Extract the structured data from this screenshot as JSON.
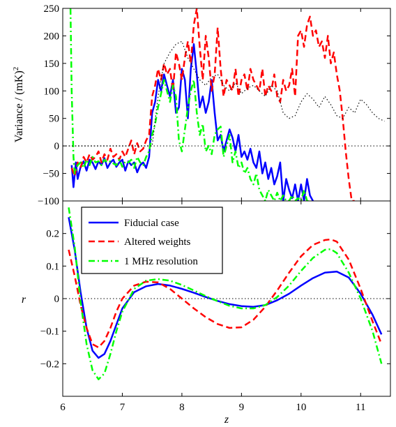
{
  "chart_data": [
    {
      "type": "line",
      "panel": "top",
      "ylabel_main": "Variance / (mK)",
      "ylabel_sup": "2",
      "xlim": [
        6,
        11.5
      ],
      "ylim": [
        -100,
        250
      ],
      "yticks": [
        -100,
        -50,
        0,
        50,
        100,
        150,
        200,
        250
      ],
      "ytick_labels": [
        "−100",
        "−50",
        "0",
        "50",
        "100",
        "150",
        "200",
        "250"
      ],
      "grid": false,
      "series": [
        {
          "color": "#0000ff",
          "style": "solid",
          "x": [
            6.15,
            6.18,
            6.22,
            6.25,
            6.3,
            6.35,
            6.4,
            6.45,
            6.5,
            6.55,
            6.6,
            6.65,
            6.7,
            6.75,
            6.8,
            6.85,
            6.9,
            6.95,
            7.0,
            7.05,
            7.1,
            7.15,
            7.2,
            7.25,
            7.3,
            7.35,
            7.4,
            7.45,
            7.5,
            7.55,
            7.6,
            7.65,
            7.7,
            7.75,
            7.8,
            7.85,
            7.9,
            7.95,
            8.0,
            8.05,
            8.1,
            8.15,
            8.2,
            8.25,
            8.3,
            8.35,
            8.4,
            8.45,
            8.5,
            8.55,
            8.6,
            8.65,
            8.7,
            8.75,
            8.8,
            8.85,
            8.9,
            8.95,
            9.0,
            9.05,
            9.1,
            9.15,
            9.2,
            9.25,
            9.3,
            9.35,
            9.4,
            9.45,
            9.5,
            9.55,
            9.6,
            9.65,
            9.7,
            9.75,
            9.8,
            9.85,
            9.9,
            9.95,
            10.0,
            10.05,
            10.1,
            10.15,
            10.2
          ],
          "y": [
            -35,
            -75,
            -30,
            -60,
            -38,
            -28,
            -45,
            -25,
            -30,
            -42,
            -28,
            -35,
            -22,
            -40,
            -30,
            -25,
            -38,
            -30,
            -25,
            -45,
            -28,
            -35,
            -30,
            -48,
            -35,
            -30,
            -40,
            -20,
            60,
            80,
            120,
            100,
            130,
            110,
            90,
            120,
            60,
            70,
            140,
            120,
            50,
            140,
            185,
            130,
            70,
            90,
            60,
            80,
            120,
            60,
            10,
            20,
            -10,
            10,
            30,
            15,
            -10,
            20,
            -20,
            -10,
            -25,
            -5,
            -30,
            -40,
            -10,
            -50,
            -30,
            -60,
            -40,
            -70,
            -55,
            -30,
            -100,
            -60,
            -80,
            -95,
            -70,
            -100,
            -70,
            -100,
            -60,
            -90,
            -100
          ]
        },
        {
          "color": "#ff0000",
          "style": "dashed",
          "x": [
            6.15,
            6.2,
            6.25,
            6.3,
            6.35,
            6.4,
            6.45,
            6.5,
            6.55,
            6.6,
            6.65,
            6.7,
            6.75,
            6.8,
            6.85,
            6.9,
            6.95,
            7.0,
            7.05,
            7.1,
            7.15,
            7.2,
            7.25,
            7.3,
            7.35,
            7.4,
            7.45,
            7.5,
            7.55,
            7.6,
            7.65,
            7.7,
            7.75,
            7.8,
            7.85,
            7.9,
            7.95,
            8.0,
            8.05,
            8.1,
            8.15,
            8.2,
            8.25,
            8.3,
            8.35,
            8.4,
            8.45,
            8.5,
            8.55,
            8.6,
            8.65,
            8.7,
            8.75,
            8.8,
            8.85,
            8.9,
            8.95,
            9.0,
            9.05,
            9.1,
            9.15,
            9.2,
            9.25,
            9.3,
            9.35,
            9.4,
            9.45,
            9.5,
            9.55,
            9.6,
            9.65,
            9.7,
            9.75,
            9.8,
            9.85,
            9.9,
            9.95,
            10.0,
            10.05,
            10.1,
            10.15,
            10.2,
            10.25,
            10.3,
            10.35,
            10.4,
            10.45,
            10.5,
            10.55,
            10.6,
            10.65,
            10.7,
            10.75,
            10.8,
            10.85,
            10.9
          ],
          "y": [
            -40,
            -55,
            -30,
            -40,
            -20,
            -30,
            -15,
            -25,
            -20,
            -10,
            -30,
            -15,
            -25,
            -5,
            -20,
            -15,
            -25,
            -10,
            -20,
            -5,
            10,
            -15,
            5,
            -10,
            -5,
            10,
            20,
            90,
            110,
            140,
            120,
            150,
            130,
            140,
            100,
            170,
            150,
            120,
            160,
            190,
            150,
            220,
            250,
            180,
            120,
            200,
            160,
            100,
            130,
            215,
            140,
            90,
            120,
            110,
            100,
            140,
            90,
            120,
            130,
            100,
            140,
            120,
            110,
            100,
            140,
            90,
            110,
            100,
            130,
            90,
            80,
            120,
            100,
            110,
            140,
            90,
            200,
            210,
            180,
            220,
            235,
            200,
            210,
            180,
            190,
            160,
            200,
            150,
            170,
            130,
            100,
            50,
            -10,
            -60,
            -100,
            -100
          ]
        },
        {
          "color": "#00ff00",
          "style": "dashdot",
          "x": [
            6.13,
            6.15,
            6.18,
            6.2,
            6.25,
            6.3,
            6.35,
            6.4,
            6.45,
            6.5,
            6.55,
            6.6,
            6.65,
            6.7,
            6.75,
            6.8,
            6.85,
            6.9,
            6.95,
            7.0,
            7.05,
            7.1,
            7.15,
            7.2,
            7.25,
            7.3,
            7.35,
            7.4,
            7.45,
            7.5,
            7.55,
            7.6,
            7.65,
            7.7,
            7.75,
            7.8,
            7.85,
            7.9,
            7.95,
            8.0,
            8.05,
            8.1,
            8.15,
            8.2,
            8.25,
            8.3,
            8.35,
            8.4,
            8.45,
            8.5,
            8.55,
            8.6,
            8.65,
            8.7,
            8.75,
            8.8,
            8.85,
            8.9,
            8.95,
            9.0,
            9.05,
            9.1,
            9.15,
            9.2,
            9.25,
            9.3,
            9.35,
            9.4,
            9.45,
            9.5,
            9.55,
            9.6,
            9.65,
            9.7,
            9.75,
            9.8,
            9.85,
            9.9,
            9.95,
            10.0,
            10.05,
            10.1,
            10.15
          ],
          "y": [
            250,
            100,
            -20,
            -50,
            -35,
            -30,
            -40,
            -25,
            -35,
            -20,
            -30,
            -28,
            -35,
            -25,
            -30,
            -28,
            -32,
            -35,
            -25,
            -38,
            -28,
            -30,
            -25,
            -40,
            -20,
            -30,
            -35,
            -20,
            -10,
            20,
            40,
            70,
            95,
            120,
            100,
            80,
            110,
            90,
            10,
            -10,
            30,
            70,
            100,
            120,
            60,
            20,
            40,
            -10,
            0,
            -15,
            20,
            30,
            35,
            -20,
            0,
            20,
            -30,
            -10,
            -40,
            -30,
            -50,
            -40,
            -60,
            -70,
            -50,
            -80,
            -90,
            -100,
            -80,
            -90,
            -100,
            -85,
            -100,
            -90,
            -100,
            -100,
            -90,
            -100,
            -95,
            -100,
            -80,
            -100,
            -100
          ]
        },
        {
          "color": "#000000",
          "style": "dotted",
          "x": [
            6.1,
            6.5,
            7.0,
            7.5,
            7.6,
            7.7,
            7.8,
            7.9,
            8.0,
            8.1,
            8.2,
            8.3,
            8.4,
            8.5,
            8.6,
            8.7,
            8.8,
            8.9,
            9.0,
            9.1,
            9.2,
            9.3,
            9.4,
            9.5,
            9.6,
            9.7,
            9.8,
            9.9,
            10.0,
            10.1,
            10.2,
            10.3,
            10.4,
            10.5,
            10.6,
            10.7,
            10.8,
            10.9,
            11.0,
            11.1,
            11.2,
            11.3,
            11.4
          ],
          "y": [
            0,
            0,
            0,
            0,
            90,
            150,
            170,
            185,
            190,
            160,
            140,
            120,
            110,
            125,
            130,
            110,
            100,
            115,
            95,
            105,
            110,
            100,
            90,
            110,
            100,
            60,
            50,
            55,
            80,
            95,
            85,
            70,
            90,
            75,
            55,
            50,
            70,
            60,
            85,
            75,
            60,
            50,
            45
          ]
        }
      ]
    },
    {
      "type": "line",
      "panel": "bottom",
      "xlabel": "z",
      "ylabel": "r",
      "xlim": [
        6,
        11.5
      ],
      "ylim": [
        -0.3,
        0.3
      ],
      "xticks": [
        6,
        7,
        8,
        9,
        10,
        11
      ],
      "xtick_labels": [
        "6",
        "7",
        "8",
        "9",
        "10",
        "11"
      ],
      "yticks": [
        -0.2,
        -0.1,
        0,
        0.1,
        0.2
      ],
      "ytick_labels": [
        "−0.2",
        "−0.1",
        "0",
        "0.1",
        "0.2"
      ],
      "grid": false,
      "legend_position": "top-left",
      "series": [
        {
          "name": "Fiducial case",
          "color": "#0000ff",
          "style": "solid",
          "x": [
            6.1,
            6.2,
            6.3,
            6.4,
            6.5,
            6.6,
            6.7,
            6.8,
            6.9,
            7.0,
            7.2,
            7.4,
            7.6,
            7.8,
            8.0,
            8.2,
            8.4,
            8.6,
            8.8,
            9.0,
            9.2,
            9.4,
            9.6,
            9.8,
            10.0,
            10.2,
            10.4,
            10.6,
            10.8,
            11.0,
            11.2,
            11.35
          ],
          "y": [
            0.25,
            0.15,
            0.02,
            -0.09,
            -0.16,
            -0.182,
            -0.17,
            -0.13,
            -0.08,
            -0.03,
            0.02,
            0.038,
            0.045,
            0.04,
            0.03,
            0.018,
            0.005,
            -0.007,
            -0.017,
            -0.023,
            -0.025,
            -0.02,
            -0.005,
            0.015,
            0.04,
            0.063,
            0.08,
            0.083,
            0.065,
            0.015,
            -0.05,
            -0.11
          ]
        },
        {
          "name": "Altered weights",
          "color": "#ff0000",
          "style": "dashed",
          "x": [
            6.1,
            6.2,
            6.3,
            6.4,
            6.5,
            6.6,
            6.7,
            6.8,
            6.9,
            7.0,
            7.2,
            7.4,
            7.6,
            7.8,
            8.0,
            8.2,
            8.4,
            8.6,
            8.8,
            9.0,
            9.2,
            9.4,
            9.6,
            9.8,
            10.0,
            10.2,
            10.4,
            10.5,
            10.6,
            10.8,
            11.0,
            11.2,
            11.35
          ],
          "y": [
            0.15,
            0.07,
            -0.02,
            -0.09,
            -0.14,
            -0.15,
            -0.13,
            -0.09,
            -0.04,
            0.0,
            0.04,
            0.052,
            0.05,
            0.03,
            0.0,
            -0.03,
            -0.057,
            -0.078,
            -0.09,
            -0.088,
            -0.065,
            -0.025,
            0.025,
            0.08,
            0.13,
            0.165,
            0.18,
            0.182,
            0.175,
            0.12,
            0.03,
            -0.07,
            -0.14
          ]
        },
        {
          "name": "1 MHz resolution",
          "color": "#00ff00",
          "style": "dashdot",
          "x": [
            6.1,
            6.2,
            6.3,
            6.4,
            6.5,
            6.6,
            6.7,
            6.8,
            6.9,
            7.0,
            7.2,
            7.4,
            7.6,
            7.8,
            8.0,
            8.2,
            8.4,
            8.6,
            8.8,
            9.0,
            9.2,
            9.4,
            9.6,
            9.8,
            10.0,
            10.2,
            10.4,
            10.5,
            10.6,
            10.8,
            11.0,
            11.2,
            11.35
          ],
          "y": [
            0.28,
            0.16,
            -0.01,
            -0.14,
            -0.22,
            -0.248,
            -0.23,
            -0.17,
            -0.1,
            -0.04,
            0.03,
            0.055,
            0.06,
            0.055,
            0.042,
            0.025,
            0.008,
            -0.008,
            -0.022,
            -0.03,
            -0.03,
            -0.02,
            0.005,
            0.04,
            0.085,
            0.125,
            0.15,
            0.152,
            0.14,
            0.08,
            0.0,
            -0.1,
            -0.2
          ]
        }
      ]
    }
  ]
}
